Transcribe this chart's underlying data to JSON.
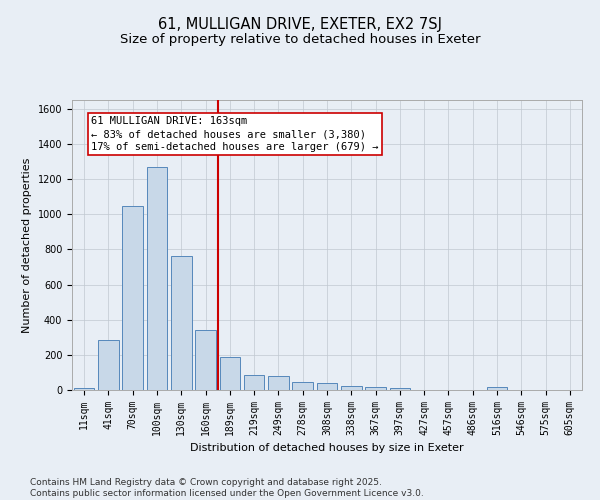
{
  "title": "61, MULLIGAN DRIVE, EXETER, EX2 7SJ",
  "subtitle": "Size of property relative to detached houses in Exeter",
  "xlabel": "Distribution of detached houses by size in Exeter",
  "ylabel": "Number of detached properties",
  "categories": [
    "11sqm",
    "41sqm",
    "70sqm",
    "100sqm",
    "130sqm",
    "160sqm",
    "189sqm",
    "219sqm",
    "249sqm",
    "278sqm",
    "308sqm",
    "338sqm",
    "367sqm",
    "397sqm",
    "427sqm",
    "457sqm",
    "486sqm",
    "516sqm",
    "546sqm",
    "575sqm",
    "605sqm"
  ],
  "values": [
    10,
    285,
    1045,
    1270,
    760,
    340,
    190,
    85,
    80,
    45,
    40,
    25,
    15,
    10,
    0,
    0,
    0,
    15,
    0,
    0,
    0
  ],
  "bar_color": "#c8d8e8",
  "bar_edge_color": "#5588bb",
  "vline_x": 5.5,
  "vline_color": "#cc0000",
  "annotation_text": "61 MULLIGAN DRIVE: 163sqm\n← 83% of detached houses are smaller (3,380)\n17% of semi-detached houses are larger (679) →",
  "annotation_box_color": "#ffffff",
  "annotation_box_edge": "#cc0000",
  "ylim": [
    0,
    1650
  ],
  "yticks": [
    0,
    200,
    400,
    600,
    800,
    1000,
    1200,
    1400,
    1600
  ],
  "grid_color": "#c0c8d0",
  "background_color": "#e8eef5",
  "footer_text": "Contains HM Land Registry data © Crown copyright and database right 2025.\nContains public sector information licensed under the Open Government Licence v3.0.",
  "title_fontsize": 10.5,
  "subtitle_fontsize": 9.5,
  "axis_label_fontsize": 8,
  "tick_fontsize": 7,
  "annotation_fontsize": 7.5,
  "footer_fontsize": 6.5
}
